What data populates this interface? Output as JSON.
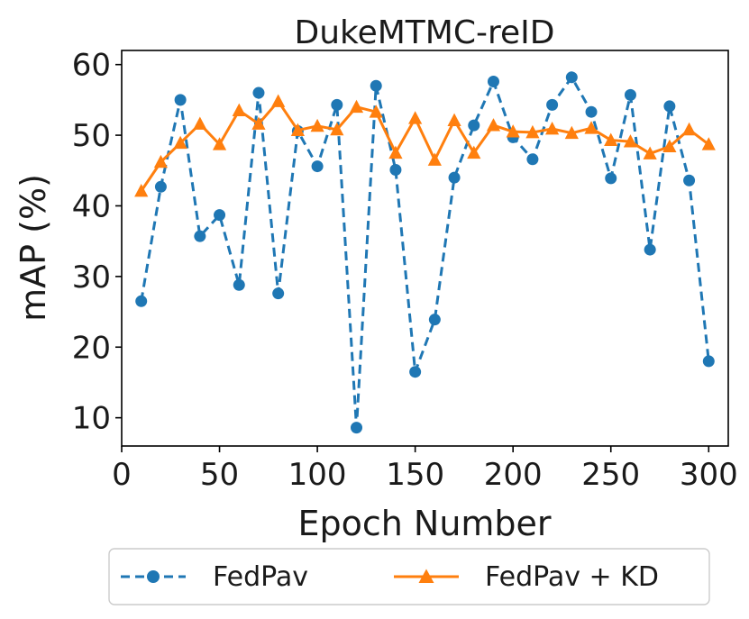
{
  "chart_data": {
    "type": "line",
    "title": "DukeMTMC-reID",
    "xlabel": "Epoch Number",
    "ylabel": "mAP (%)",
    "xlim": [
      0,
      310
    ],
    "ylim": [
      6,
      62
    ],
    "xticks": [
      0,
      50,
      100,
      150,
      200,
      250,
      300
    ],
    "yticks": [
      10,
      20,
      30,
      40,
      50,
      60
    ],
    "grid": false,
    "legend_position": "bottom-center, outside plot",
    "x": [
      10,
      20,
      30,
      40,
      50,
      60,
      70,
      80,
      90,
      100,
      110,
      120,
      130,
      140,
      150,
      160,
      170,
      180,
      190,
      200,
      210,
      220,
      230,
      240,
      250,
      260,
      270,
      280,
      290,
      300
    ],
    "series": [
      {
        "name": "FedPav",
        "color": "#1f77b4",
        "line_style": "dashed",
        "marker": "circle",
        "values": [
          26.5,
          42.7,
          55.0,
          35.7,
          38.7,
          28.8,
          56.0,
          27.6,
          50.6,
          45.6,
          54.3,
          8.6,
          57.0,
          45.1,
          16.5,
          23.9,
          44.0,
          51.4,
          57.6,
          49.7,
          46.6,
          54.3,
          58.2,
          53.3,
          43.9,
          55.7,
          33.8,
          54.1,
          43.6,
          18.0
        ]
      },
      {
        "name": "FedPav + KD",
        "color": "#ff7f0e",
        "line_style": "solid",
        "marker": "triangle",
        "values": [
          42.1,
          46.2,
          48.9,
          51.6,
          48.7,
          53.5,
          51.6,
          54.8,
          50.7,
          51.3,
          50.8,
          54.0,
          53.3,
          47.5,
          52.4,
          46.5,
          52.1,
          47.5,
          51.4,
          50.5,
          50.4,
          50.9,
          50.3,
          51.0,
          49.3,
          49.1,
          47.4,
          48.4,
          50.8,
          48.7
        ]
      }
    ]
  }
}
